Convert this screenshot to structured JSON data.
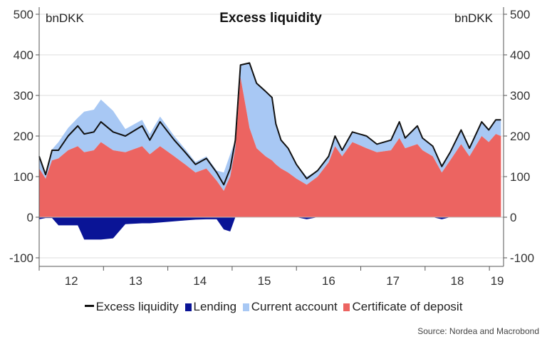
{
  "chart_data": {
    "type": "area",
    "title": "Excess liquidity",
    "unit_left": "bnDKK",
    "unit_right": "bnDKK",
    "ylim": [
      -120,
      520
    ],
    "y_ticks": [
      500,
      400,
      300,
      200,
      100,
      0,
      -100
    ],
    "y_tick_labels": [
      "500",
      "400",
      "300",
      "200",
      "100",
      "0",
      "-100"
    ],
    "x_ticks": [
      2012,
      2013,
      2014,
      2015,
      2016,
      2017,
      2018,
      2019
    ],
    "x_tick_labels": [
      "12",
      "13",
      "14",
      "15",
      "16",
      "17",
      "18",
      "19"
    ],
    "xlim": [
      2012.0,
      2019.22
    ],
    "grid": true,
    "legend_position": "bottom",
    "source": "Source: Nordea and Macrobond",
    "x": [
      2012.0,
      2012.1,
      2012.2,
      2012.3,
      2012.45,
      2012.6,
      2012.7,
      2012.85,
      2012.96,
      2013.15,
      2013.34,
      2013.6,
      2013.72,
      2013.88,
      2014.1,
      2014.27,
      2014.43,
      2014.6,
      2014.76,
      2014.87,
      2014.97,
      2015.05,
      2015.13,
      2015.27,
      2015.38,
      2015.52,
      2015.62,
      2015.68,
      2015.76,
      2015.87,
      2016.0,
      2016.16,
      2016.33,
      2016.5,
      2016.6,
      2016.71,
      2016.87,
      2017.09,
      2017.25,
      2017.47,
      2017.6,
      2017.69,
      2017.88,
      2017.96,
      2018.12,
      2018.26,
      2018.39,
      2018.56,
      2018.69,
      2018.88,
      2018.99,
      2019.1,
      2019.18
    ],
    "series": [
      {
        "name": "Excess liquidity",
        "kind": "line",
        "color": "#111111",
        "values": [
          150,
          105,
          165,
          165,
          200,
          225,
          205,
          210,
          235,
          210,
          200,
          225,
          190,
          235,
          190,
          160,
          130,
          145,
          110,
          80,
          120,
          190,
          375,
          380,
          330,
          310,
          295,
          230,
          190,
          170,
          130,
          95,
          115,
          150,
          200,
          165,
          210,
          200,
          180,
          190,
          235,
          195,
          225,
          195,
          175,
          125,
          160,
          215,
          170,
          235,
          215,
          240,
          240
        ]
      },
      {
        "name": "Lending",
        "kind": "area",
        "color": "#0a1496",
        "values": [
          -5,
          -2,
          -2,
          -20,
          -20,
          -20,
          -55,
          -55,
          -55,
          -52,
          -17,
          -15,
          -15,
          -13,
          -10,
          -8,
          -6,
          -5,
          -5,
          -30,
          -35,
          0,
          0,
          0,
          0,
          0,
          0,
          0,
          0,
          0,
          0,
          -5,
          0,
          0,
          0,
          0,
          0,
          0,
          0,
          0,
          0,
          0,
          0,
          0,
          0,
          -5,
          0,
          0,
          0,
          0,
          0,
          0,
          0
        ]
      },
      {
        "name": "Current account",
        "kind": "stacked-area",
        "color": "#a8c8f4",
        "values": [
          35,
          12,
          27,
          40,
          55,
          70,
          100,
          100,
          105,
          97,
          57,
          65,
          50,
          73,
          50,
          38,
          26,
          30,
          25,
          45,
          55,
          20,
          30,
          160,
          160,
          160,
          155,
          100,
          70,
          60,
          35,
          20,
          15,
          15,
          25,
          15,
          25,
          30,
          20,
          25,
          40,
          25,
          45,
          30,
          25,
          20,
          20,
          35,
          20,
          35,
          30,
          35,
          40
        ]
      },
      {
        "name": "Certificate of deposit",
        "kind": "area",
        "color": "#ec6461",
        "values": [
          120,
          95,
          140,
          145,
          165,
          175,
          160,
          165,
          185,
          165,
          160,
          175,
          155,
          175,
          150,
          130,
          110,
          120,
          90,
          65,
          100,
          170,
          345,
          220,
          170,
          150,
          140,
          130,
          120,
          110,
          95,
          80,
          100,
          135,
          175,
          150,
          185,
          170,
          160,
          165,
          195,
          170,
          180,
          165,
          150,
          110,
          140,
          180,
          150,
          200,
          185,
          205,
          200
        ]
      }
    ]
  }
}
